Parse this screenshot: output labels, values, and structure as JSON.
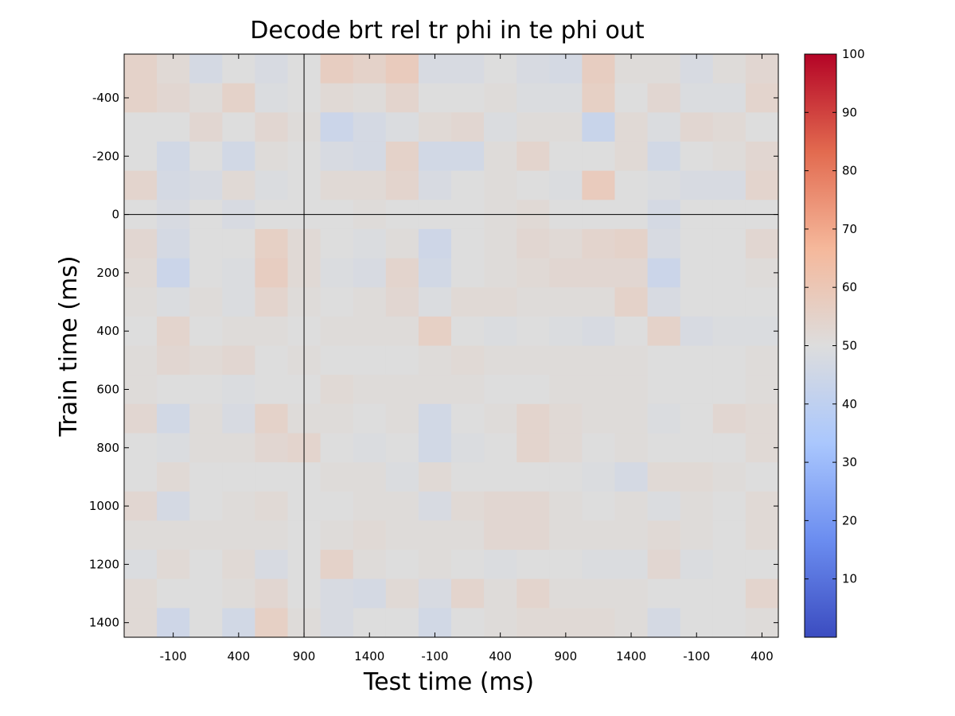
{
  "chart_data": {
    "type": "heatmap",
    "title": "Decode brt rel tr phi in te phi out",
    "xlabel": "Test time (ms)",
    "ylabel": "Train time (ms)",
    "x_tick_labels": [
      "-100",
      "400",
      "900",
      "1400",
      "-100",
      "400",
      "900",
      "1400",
      "-100",
      "400"
    ],
    "y_tick_labels": [
      "-400",
      "-200",
      "0",
      "200",
      "400",
      "600",
      "800",
      "1000",
      "1200",
      "1400"
    ],
    "y_range": [
      -550,
      1450
    ],
    "n_cols": 20,
    "n_rows": 20,
    "colorbar": {
      "range": [
        0,
        100
      ],
      "ticks": [
        "10",
        "20",
        "30",
        "40",
        "50",
        "60",
        "70",
        "80",
        "90",
        "100"
      ],
      "colormap": [
        "#3b4cc0",
        "#6b8df0",
        "#aac7fd",
        "#dddddd",
        "#f5b89b",
        "#e26a4f",
        "#b40426"
      ]
    },
    "reference_lines": [
      {
        "orientation": "vertical",
        "at_column": 5.5
      },
      {
        "orientation": "horizontal",
        "at": 0
      }
    ],
    "values": [
      [
        55,
        52,
        47,
        50,
        48,
        50,
        57,
        55,
        58,
        48,
        48,
        50,
        48,
        47,
        57,
        51,
        51,
        48,
        51,
        53
      ],
      [
        55,
        53,
        51,
        55,
        49,
        50,
        52,
        51,
        54,
        50,
        50,
        51,
        49,
        49,
        56,
        50,
        53,
        49,
        49,
        54
      ],
      [
        50,
        50,
        53,
        50,
        53,
        51,
        44,
        47,
        49,
        52,
        53,
        49,
        51,
        51,
        43,
        52,
        49,
        53,
        52,
        50
      ],
      [
        50,
        46,
        50,
        46,
        51,
        50,
        48,
        47,
        55,
        46,
        46,
        51,
        54,
        50,
        50,
        52,
        46,
        50,
        51,
        53
      ],
      [
        54,
        47,
        48,
        52,
        49,
        50,
        52,
        52,
        54,
        48,
        50,
        51,
        50,
        49,
        58,
        50,
        49,
        48,
        48,
        54
      ],
      [
        50,
        48,
        50,
        48,
        50,
        50,
        50,
        51,
        50,
        50,
        50,
        51,
        52,
        50,
        50,
        50,
        47,
        50,
        50,
        50
      ],
      [
        53,
        47,
        50,
        50,
        56,
        52,
        50,
        49,
        51,
        45,
        50,
        51,
        53,
        52,
        54,
        55,
        48,
        50,
        50,
        53
      ],
      [
        52,
        44,
        50,
        49,
        57,
        52,
        49,
        48,
        54,
        46,
        50,
        51,
        52,
        53,
        53,
        53,
        44,
        50,
        50,
        51
      ],
      [
        51,
        49,
        51,
        49,
        54,
        51,
        50,
        51,
        53,
        49,
        52,
        52,
        51,
        51,
        51,
        55,
        48,
        50,
        50,
        50
      ],
      [
        50,
        54,
        50,
        51,
        51,
        50,
        51,
        51,
        51,
        56,
        50,
        49,
        50,
        49,
        48,
        50,
        55,
        48,
        49,
        49
      ],
      [
        51,
        53,
        52,
        53,
        50,
        51,
        50,
        50,
        50,
        51,
        52,
        51,
        51,
        51,
        51,
        51,
        50,
        50,
        50,
        51
      ],
      [
        51,
        50,
        50,
        49,
        50,
        50,
        52,
        51,
        51,
        51,
        51,
        50,
        50,
        51,
        51,
        51,
        50,
        50,
        50,
        51
      ],
      [
        53,
        46,
        51,
        48,
        55,
        51,
        51,
        50,
        51,
        46,
        50,
        51,
        54,
        52,
        51,
        51,
        49,
        50,
        53,
        52
      ],
      [
        50,
        49,
        51,
        51,
        53,
        54,
        50,
        49,
        50,
        46,
        49,
        50,
        54,
        52,
        50,
        51,
        50,
        50,
        50,
        52
      ],
      [
        50,
        52,
        50,
        50,
        50,
        50,
        51,
        51,
        49,
        52,
        50,
        50,
        50,
        50,
        49,
        47,
        52,
        52,
        51,
        50
      ],
      [
        53,
        47,
        50,
        51,
        52,
        50,
        50,
        51,
        51,
        48,
        52,
        53,
        53,
        51,
        50,
        51,
        49,
        51,
        50,
        52
      ],
      [
        51,
        51,
        51,
        51,
        51,
        50,
        51,
        52,
        51,
        51,
        51,
        53,
        53,
        51,
        51,
        51,
        52,
        51,
        50,
        52
      ],
      [
        49,
        52,
        50,
        52,
        48,
        50,
        55,
        51,
        50,
        51,
        50,
        49,
        50,
        50,
        49,
        49,
        53,
        49,
        50,
        50
      ],
      [
        52,
        50,
        50,
        51,
        53,
        50,
        48,
        47,
        52,
        48,
        54,
        51,
        54,
        51,
        51,
        51,
        50,
        50,
        50,
        54
      ],
      [
        52,
        45,
        50,
        46,
        56,
        51,
        48,
        50,
        50,
        46,
        50,
        51,
        52,
        52,
        52,
        51,
        47,
        50,
        50,
        51
      ]
    ]
  }
}
